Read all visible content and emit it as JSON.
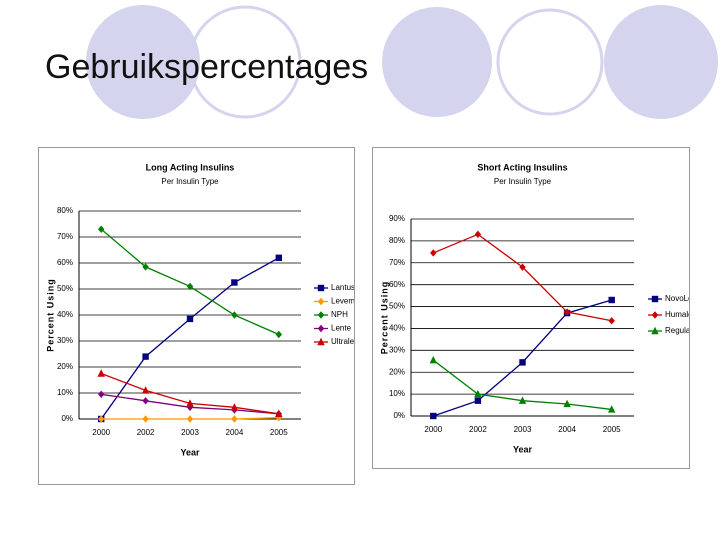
{
  "title": "Gebruikspercentages",
  "chart_data": [
    {
      "type": "line",
      "title": "Long Acting Insulins",
      "subtitle": "Per Insulin Type",
      "x_label": "Year",
      "y_label": "Percent Using",
      "grid": true,
      "legend": "right",
      "categories": [
        "2000",
        "2002",
        "2003",
        "2004",
        "2005"
      ],
      "ylim": [
        0,
        80
      ],
      "yticks": [
        {
          "value": 0,
          "label": "0%"
        },
        {
          "value": 10,
          "label": "10%"
        },
        {
          "value": 20,
          "label": "20%"
        },
        {
          "value": 30,
          "label": "30%"
        },
        {
          "value": 40,
          "label": "40%"
        },
        {
          "value": 50,
          "label": "50%"
        },
        {
          "value": 60,
          "label": "60%"
        },
        {
          "value": 70,
          "label": "70%"
        },
        {
          "value": 80,
          "label": "80%"
        }
      ],
      "series": [
        {
          "name": "Lantus",
          "color": "#000080",
          "marker": "square",
          "values": [
            0,
            24,
            38.5,
            52.5,
            62
          ]
        },
        {
          "name": "Levemir",
          "color": "#ff9900",
          "marker": "diamond",
          "values": [
            0,
            0,
            0,
            0,
            0.5
          ]
        },
        {
          "name": "NPH",
          "color": "#008000",
          "marker": "diamond",
          "values": [
            73,
            58.5,
            51,
            40,
            32.5
          ]
        },
        {
          "name": "Lente",
          "color": "#800080",
          "marker": "diamond",
          "values": [
            9.5,
            7,
            4.5,
            3.5,
            2
          ]
        },
        {
          "name": "Ultralente",
          "color": "#cc0000",
          "marker": "triangle",
          "values": [
            17.5,
            11,
            6,
            4.5,
            2
          ]
        }
      ]
    },
    {
      "type": "line",
      "title": "Short Acting Insulins",
      "subtitle": "Per Insulin Type",
      "x_label": "Year",
      "y_label": "Percent Using",
      "grid": true,
      "legend": "right",
      "categories": [
        "2000",
        "2002",
        "2003",
        "2004",
        "2005"
      ],
      "ylim": [
        0,
        90
      ],
      "yticks": [
        {
          "value": 0,
          "label": "0%"
        },
        {
          "value": 10,
          "label": "10%"
        },
        {
          "value": 20,
          "label": "20%"
        },
        {
          "value": 30,
          "label": "30%"
        },
        {
          "value": 40,
          "label": "40%"
        },
        {
          "value": 50,
          "label": "50%"
        },
        {
          "value": 60,
          "label": "60%"
        },
        {
          "value": 70,
          "label": "70%"
        },
        {
          "value": 80,
          "label": "80%"
        },
        {
          "value": 90,
          "label": "90%"
        }
      ],
      "series": [
        {
          "name": "NovoLog",
          "color": "#000080",
          "marker": "square",
          "values": [
            0,
            7,
            24.5,
            47,
            53
          ]
        },
        {
          "name": "Humalog",
          "color": "#cc0000",
          "marker": "diamond",
          "values": [
            74.5,
            83,
            68,
            47.5,
            43.5
          ]
        },
        {
          "name": "Regular",
          "color": "#008000",
          "marker": "triangle",
          "values": [
            25.5,
            10,
            7,
            5.5,
            3
          ]
        }
      ]
    }
  ]
}
